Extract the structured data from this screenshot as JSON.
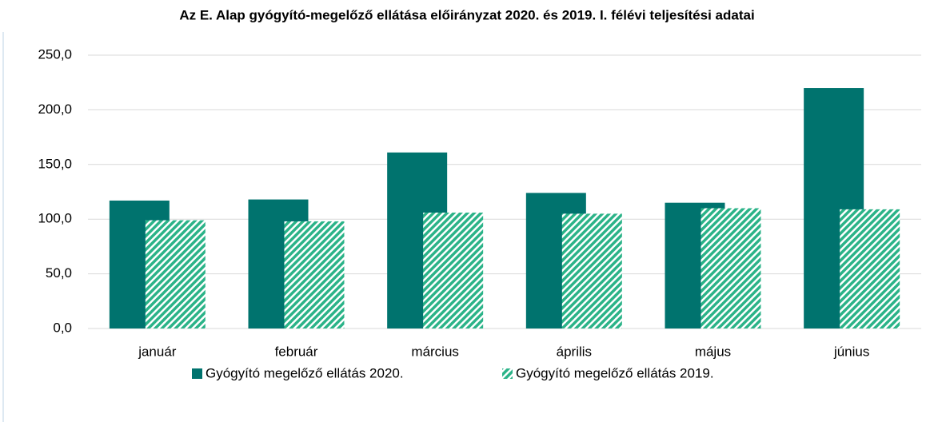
{
  "chart_data": {
    "type": "bar",
    "title": "Az E. Alap gyógyító-megelőző ellátása előirányzat 2020. és 2019. I. félévi teljesítési adatai",
    "categories": [
      "január",
      "február",
      "március",
      "április",
      "május",
      "június"
    ],
    "series": [
      {
        "name": "Gyógyító megelőző ellátás 2020.",
        "color": "#00736e",
        "values": [
          117,
          118,
          161,
          124,
          115,
          220
        ]
      },
      {
        "name": "Gyógyító megelőző ellátás 2019.",
        "color": "#2bb388",
        "pattern": "hatched",
        "values": [
          99,
          98,
          106,
          105,
          110,
          109
        ]
      }
    ],
    "ylim": [
      0,
      250
    ],
    "yticks": [
      {
        "value": 0,
        "label": "0,0"
      },
      {
        "value": 50,
        "label": "50,0"
      },
      {
        "value": 100,
        "label": "100,0"
      },
      {
        "value": 150,
        "label": "150,0"
      },
      {
        "value": 200,
        "label": "200,0"
      },
      {
        "value": 250,
        "label": "250,0"
      }
    ],
    "grid": true,
    "legend": "bottom"
  }
}
